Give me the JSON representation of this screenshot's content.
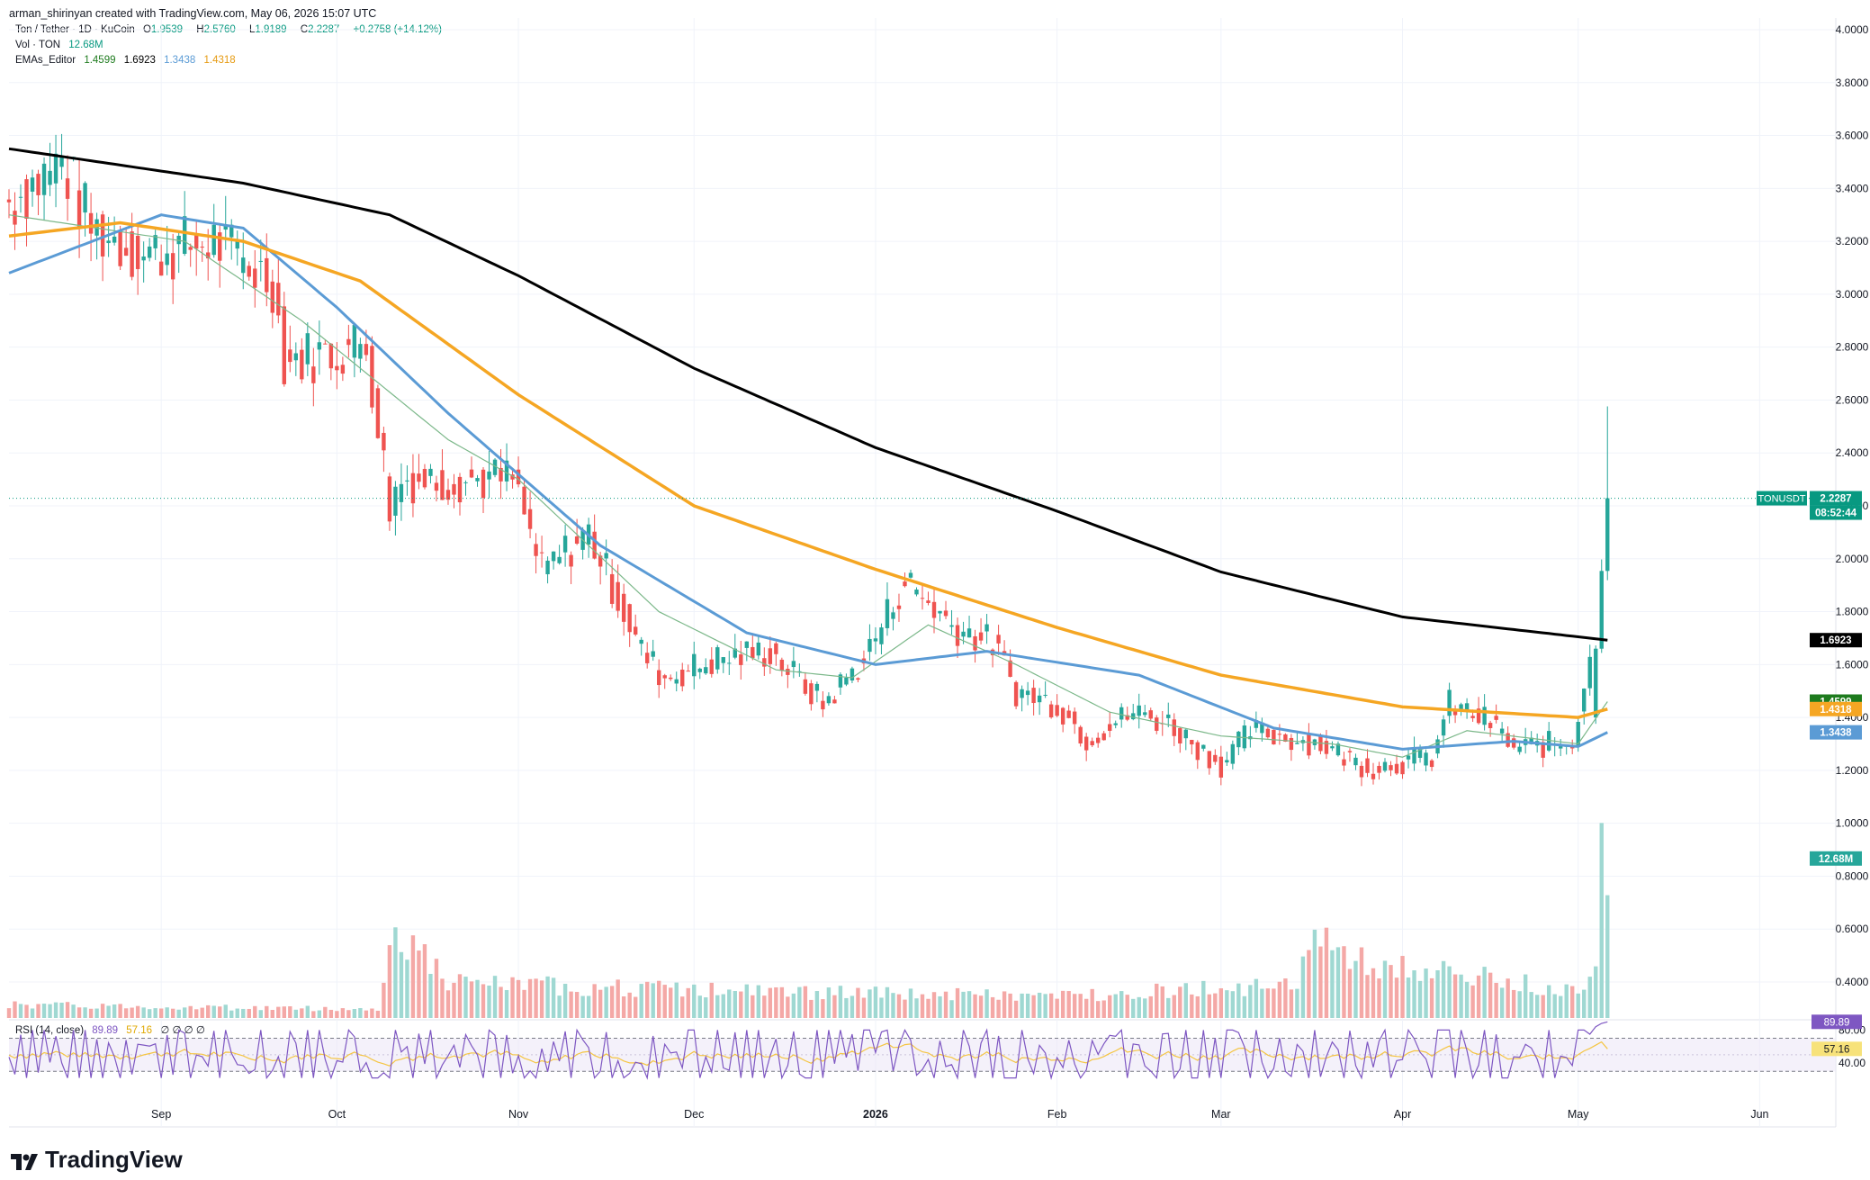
{
  "header": {
    "created_by": "arman_shirinyan created with TradingView.com, May 06, 2026 15:07 UTC"
  },
  "legend": {
    "symbol_line": "Ton / Tether · 1D · KuCoin",
    "ohlc": {
      "o_label": "O",
      "o": "1.9539",
      "h_label": "H",
      "h": "2.5760",
      "l_label": "L",
      "l": "1.9189",
      "c_label": "C",
      "c": "2.2287",
      "change": "+0.2758 (+14.12%)"
    },
    "vol_label": "Vol · TON",
    "vol_value": "12.68M",
    "ema_label": "EMAs_Editor",
    "ema_values": [
      "1.4599",
      "1.6923",
      "1.3438",
      "1.4318"
    ],
    "rsi_label": "RSI (14, close)",
    "rsi_value": "89.89",
    "rsi_ma_value": "57.16",
    "rsi_extra": "∅ ∅ ∅ ∅"
  },
  "brand": {
    "name": "TradingView"
  },
  "colors": {
    "up": "#26a69a",
    "down": "#ef5350",
    "ema200": "#000000",
    "ema100": "#f5a623",
    "ema50": "#5b9bd5",
    "ema20": "#7cb88a",
    "rsi": "#7e57c2",
    "rsi_ma": "#f5c542"
  },
  "price_scale": {
    "ticks": [
      "4.0000",
      "3.8000",
      "3.6000",
      "3.4000",
      "3.2000",
      "3.0000",
      "2.8000",
      "2.6000",
      "2.4000",
      "2.2000",
      "2.0000",
      "1.8000",
      "1.6000",
      "1.4000",
      "1.2000",
      "1.0000",
      "0.8000",
      "0.6000",
      "0.4000"
    ],
    "labels": [
      {
        "text": "TONUSDT",
        "price": 2.2287,
        "color": "#089981"
      },
      {
        "text": "2.2287",
        "price": 2.2287,
        "color": "#089981"
      },
      {
        "text": "08:52:44",
        "price": 2.2287,
        "color": "#089981",
        "sub": true
      },
      {
        "text": "1.6923",
        "price": 1.6923,
        "color": "#000000"
      },
      {
        "text": "1.4599",
        "price": 1.4599,
        "color": "#1e7b1e"
      },
      {
        "text": "1.4318",
        "price": 1.4318,
        "color": "#f5a623"
      },
      {
        "text": "1.3438",
        "price": 1.3438,
        "color": "#5b9bd5"
      },
      {
        "text": "12.68M",
        "price": 0.8669,
        "color": "#26a69a"
      }
    ]
  },
  "rsi_scale": {
    "ticks": [
      "80.00",
      "40.00"
    ],
    "value_label": "89.89",
    "ma_label": "57.16"
  },
  "time_axis": {
    "labels": [
      "Sep",
      "Oct",
      "Nov",
      "Dec",
      "2026",
      "Feb",
      "Mar",
      "Apr",
      "May",
      "Jun"
    ]
  },
  "chart_data": {
    "type": "candlestick",
    "symbol": "TONUSDT",
    "interval": "1D",
    "y_range": [
      0.3,
      4.0
    ],
    "x_start": "2025-08-06",
    "x_end": "2026-06-14",
    "last": {
      "open": 1.9539,
      "high": 2.576,
      "low": 1.9189,
      "close": 2.2287,
      "change": "+0.2758 (+14.12%)"
    },
    "ema_last": {
      "ema20": 1.4599,
      "ema200": 1.6923,
      "ema50": 1.3438,
      "ema100": 1.4318
    },
    "price_anchors": [
      [
        "2025-08-06",
        3.35
      ],
      [
        "2025-08-15",
        3.5
      ],
      [
        "2025-08-20",
        3.25
      ],
      [
        "2025-08-29",
        3.15
      ],
      [
        "2025-09-10",
        3.2
      ],
      [
        "2025-09-20",
        3.05
      ],
      [
        "2025-09-22",
        2.75
      ],
      [
        "2025-09-30",
        2.78
      ],
      [
        "2025-10-06",
        2.82
      ],
      [
        "2025-10-10",
        2.2
      ],
      [
        "2025-10-12",
        2.3
      ],
      [
        "2025-10-31",
        2.3
      ],
      [
        "2025-11-05",
        1.95
      ],
      [
        "2025-11-13",
        2.1
      ],
      [
        "2025-11-22",
        1.65
      ],
      [
        "2025-11-26",
        1.55
      ],
      [
        "2025-12-05",
        1.62
      ],
      [
        "2025-12-14",
        1.65
      ],
      [
        "2025-12-23",
        1.45
      ],
      [
        "2025-12-30",
        1.62
      ],
      [
        "2026-01-06",
        1.92
      ],
      [
        "2026-01-14",
        1.75
      ],
      [
        "2026-01-21",
        1.68
      ],
      [
        "2026-01-25",
        1.5
      ],
      [
        "2026-02-01",
        1.45
      ],
      [
        "2026-02-06",
        1.32
      ],
      [
        "2026-02-14",
        1.42
      ],
      [
        "2026-02-20",
        1.38
      ],
      [
        "2026-03-01",
        1.22
      ],
      [
        "2026-03-06",
        1.35
      ],
      [
        "2026-03-18",
        1.3
      ],
      [
        "2026-03-26",
        1.21
      ],
      [
        "2026-04-06",
        1.25
      ],
      [
        "2026-04-09",
        1.45
      ],
      [
        "2026-04-16",
        1.38
      ],
      [
        "2026-04-20",
        1.28
      ],
      [
        "2026-04-30",
        1.31
      ],
      [
        "2026-05-03",
        1.65
      ],
      [
        "2026-05-04",
        1.94
      ],
      [
        "2026-05-05",
        1.95
      ],
      [
        "2026-05-06",
        2.2287
      ]
    ],
    "ema200_anchors": [
      [
        "2025-08-06",
        3.55
      ],
      [
        "2025-09-15",
        3.42
      ],
      [
        "2025-10-10",
        3.3
      ],
      [
        "2025-11-01",
        3.07
      ],
      [
        "2025-12-01",
        2.72
      ],
      [
        "2026-01-01",
        2.42
      ],
      [
        "2026-02-01",
        2.18
      ],
      [
        "2026-03-01",
        1.95
      ],
      [
        "2026-04-01",
        1.78
      ],
      [
        "2026-05-06",
        1.6923
      ]
    ],
    "ema100_anchors": [
      [
        "2025-08-06",
        3.22
      ],
      [
        "2025-08-25",
        3.27
      ],
      [
        "2025-09-15",
        3.2
      ],
      [
        "2025-10-05",
        3.05
      ],
      [
        "2025-11-01",
        2.62
      ],
      [
        "2025-12-01",
        2.2
      ],
      [
        "2026-01-01",
        1.96
      ],
      [
        "2026-02-01",
        1.74
      ],
      [
        "2026-03-01",
        1.56
      ],
      [
        "2026-04-01",
        1.44
      ],
      [
        "2026-05-01",
        1.4
      ],
      [
        "2026-05-06",
        1.4318
      ]
    ],
    "ema50_anchors": [
      [
        "2025-08-06",
        3.08
      ],
      [
        "2025-09-01",
        3.3
      ],
      [
        "2025-09-15",
        3.25
      ],
      [
        "2025-10-01",
        2.95
      ],
      [
        "2025-10-20",
        2.55
      ],
      [
        "2025-11-15",
        2.05
      ],
      [
        "2025-12-10",
        1.72
      ],
      [
        "2026-01-01",
        1.6
      ],
      [
        "2026-01-20",
        1.65
      ],
      [
        "2026-02-15",
        1.56
      ],
      [
        "2026-03-10",
        1.36
      ],
      [
        "2026-04-01",
        1.28
      ],
      [
        "2026-04-20",
        1.31
      ],
      [
        "2026-05-01",
        1.29
      ],
      [
        "2026-05-06",
        1.3438
      ]
    ],
    "ema20_anchors": [
      [
        "2025-08-06",
        3.3
      ],
      [
        "2025-09-05",
        3.2
      ],
      [
        "2025-09-25",
        2.9
      ],
      [
        "2025-10-20",
        2.45
      ],
      [
        "2025-11-01",
        2.3
      ],
      [
        "2025-11-25",
        1.8
      ],
      [
        "2025-12-15",
        1.58
      ],
      [
        "2025-12-28",
        1.55
      ],
      [
        "2026-01-10",
        1.75
      ],
      [
        "2026-01-25",
        1.6
      ],
      [
        "2026-02-10",
        1.42
      ],
      [
        "2026-03-01",
        1.33
      ],
      [
        "2026-03-20",
        1.3
      ],
      [
        "2026-04-01",
        1.25
      ],
      [
        "2026-04-12",
        1.35
      ],
      [
        "2026-05-01",
        1.3
      ],
      [
        "2026-05-06",
        1.4599
      ]
    ],
    "volume_axis_max": 0.5,
    "volume_anchors": [
      [
        "2025-08-06",
        0.06
      ],
      [
        "2025-10-08",
        0.04
      ],
      [
        "2025-10-11",
        0.42
      ],
      [
        "2025-10-20",
        0.16
      ],
      [
        "2025-11-15",
        0.14
      ],
      [
        "2025-12-15",
        0.12
      ],
      [
        "2026-01-05",
        0.11
      ],
      [
        "2026-02-01",
        0.1
      ],
      [
        "2026-03-01",
        0.14
      ],
      [
        "2026-03-14",
        0.14
      ],
      [
        "2026-03-16",
        0.42
      ],
      [
        "2026-03-25",
        0.25
      ],
      [
        "2026-04-10",
        0.2
      ],
      [
        "2026-05-01",
        0.12
      ],
      [
        "2026-05-04",
        0.3
      ],
      [
        "2026-05-05",
        0.92
      ],
      [
        "2026-05-06",
        0.56
      ]
    ],
    "rsi": {
      "range": [
        0,
        100
      ],
      "bands": [
        30,
        70
      ],
      "ticks": [
        80,
        40
      ],
      "last": 89.89,
      "ma_last": 57.16
    }
  }
}
